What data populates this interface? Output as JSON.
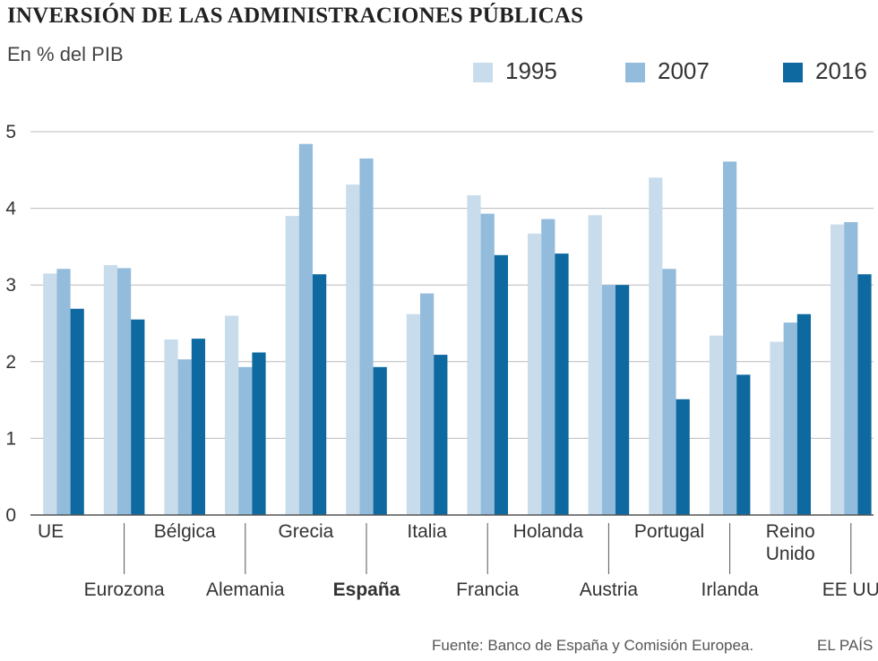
{
  "colors": {
    "series_1995": "#c8dcec",
    "series_2007": "#93bbdb",
    "series_2016": "#0d69a0",
    "grid": "#bbbbbb",
    "axis": "#555555",
    "text": "#333333"
  },
  "chart_data": {
    "type": "bar",
    "title": "INVERSIÓN DE LAS ADMINISTRACIONES PÚBLICAS",
    "subtitle": "En % del PIB",
    "xlabel": "",
    "ylabel": "",
    "ylim": [
      0,
      5
    ],
    "yticks": [
      0,
      1,
      2,
      3,
      4,
      5
    ],
    "yticklabels": [
      "0",
      "1",
      "2",
      "3",
      "4",
      "5"
    ],
    "grid": true,
    "legend_position": "top-right",
    "categories": [
      "UE",
      "Eurozona",
      "Bélgica",
      "Alemania",
      "Grecia",
      "España",
      "Italia",
      "Francia",
      "Holanda",
      "Austria",
      "Portugal",
      "Irlanda",
      "Reino Unido",
      "EE UU"
    ],
    "highlight_category": "España",
    "series": [
      {
        "name": "1995",
        "values": [
          3.15,
          3.26,
          2.29,
          2.6,
          3.9,
          4.31,
          2.62,
          4.17,
          3.67,
          3.91,
          4.4,
          2.34,
          2.26,
          3.79
        ]
      },
      {
        "name": "2007",
        "values": [
          3.21,
          3.22,
          2.03,
          1.93,
          4.84,
          4.65,
          2.89,
          3.93,
          3.86,
          3.0,
          3.21,
          4.61,
          2.51,
          3.82
        ]
      },
      {
        "name": "2016",
        "values": [
          2.69,
          2.55,
          2.3,
          2.12,
          3.14,
          1.93,
          2.09,
          3.39,
          3.41,
          3.0,
          1.51,
          1.83,
          2.62,
          3.14
        ]
      }
    ]
  },
  "footer": {
    "source": "Fuente: Banco de España y Comisión Europea.",
    "brand": "EL PAÍS"
  }
}
